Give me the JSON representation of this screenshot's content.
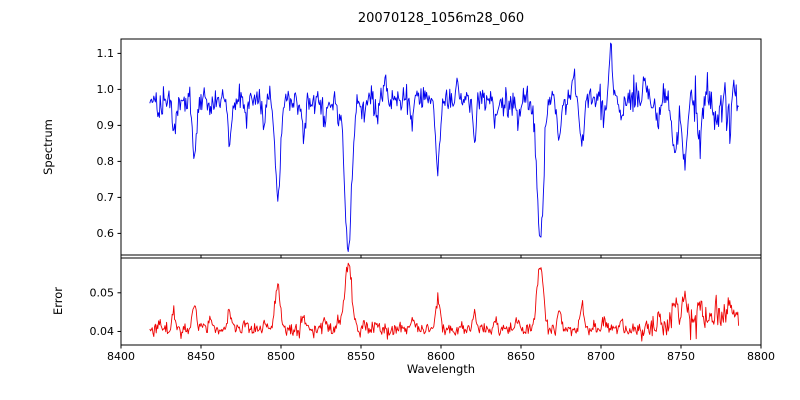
{
  "chart_data": {
    "type": "line",
    "title": "20070128_1056m28_060",
    "xlabel": "Wavelength",
    "xlim": [
      8400,
      8800
    ],
    "xticks": {
      "values": [
        8400,
        8450,
        8500,
        8550,
        8600,
        8650,
        8700,
        8750,
        8800
      ],
      "labels": [
        "8400",
        "8450",
        "8500",
        "8550",
        "8600",
        "8650",
        "8700",
        "8750",
        "8800"
      ]
    },
    "x_start": 8418,
    "x_end": 8786,
    "x_step": 0.5,
    "seed": 20070128,
    "panels": [
      {
        "name": "spectrum",
        "ylabel": "Spectrum",
        "ylim": [
          0.54,
          1.14
        ],
        "yticks": {
          "values": [
            0.6,
            0.7,
            0.8,
            0.9,
            1.0,
            1.1
          ],
          "labels": [
            "0.6",
            "0.7",
            "0.8",
            "0.9",
            "1.0",
            "1.1"
          ]
        },
        "color": "#0000ee",
        "continuum": 0.972,
        "noise_sd": 0.018
      },
      {
        "name": "error",
        "ylabel": "Error",
        "ylim": [
          0.0365,
          0.059
        ],
        "yticks": {
          "values": [
            0.04,
            0.05
          ],
          "labels": [
            "0.04",
            "0.05"
          ]
        },
        "color": "#ee0000",
        "baseline": 0.0405,
        "noise_sd": 0.0009,
        "line_response": 0.042
      }
    ],
    "absorption_lines": {
      "columns": [
        "center_wavelength",
        "depth",
        "sigma"
      ],
      "rows": [
        [
          8424,
          0.05,
          1.0
        ],
        [
          8433,
          0.1,
          1.1
        ],
        [
          8446,
          0.16,
          1.3
        ],
        [
          8456,
          0.05,
          1.0
        ],
        [
          8468,
          0.12,
          1.2
        ],
        [
          8478,
          0.05,
          1.0
        ],
        [
          8490,
          0.05,
          1.0
        ],
        [
          8498,
          0.27,
          1.7
        ],
        [
          8514,
          0.1,
          1.1
        ],
        [
          8527,
          0.07,
          1.0
        ],
        [
          8536,
          0.05,
          1.0
        ],
        [
          8542,
          0.42,
          2.1
        ],
        [
          8552,
          0.05,
          1.0
        ],
        [
          8560,
          0.04,
          1.0
        ],
        [
          8582,
          0.07,
          1.0
        ],
        [
          8598,
          0.19,
          1.4
        ],
        [
          8621,
          0.11,
          1.1
        ],
        [
          8634,
          0.04,
          1.0
        ],
        [
          8648,
          0.06,
          1.0
        ],
        [
          8662,
          0.4,
          2.0
        ],
        [
          8674,
          0.11,
          1.1
        ],
        [
          8688,
          0.14,
          1.2
        ],
        [
          8702,
          0.05,
          1.0
        ],
        [
          8713,
          0.06,
          1.0
        ],
        [
          8736,
          0.07,
          1.1
        ],
        [
          8746,
          0.14,
          1.6
        ],
        [
          8752,
          0.16,
          1.6
        ],
        [
          8762,
          0.1,
          1.2
        ],
        [
          8772,
          0.08,
          1.1
        ],
        [
          8780,
          0.06,
          1.0
        ]
      ]
    },
    "emission_spikes": {
      "columns": [
        "center_wavelength",
        "height",
        "sigma"
      ],
      "rows": [
        [
          8565,
          0.06,
          0.8
        ],
        [
          8610,
          0.06,
          0.7
        ],
        [
          8683,
          0.08,
          0.7
        ],
        [
          8706,
          0.13,
          0.9
        ],
        [
          8727,
          0.06,
          0.7
        ]
      ]
    }
  }
}
